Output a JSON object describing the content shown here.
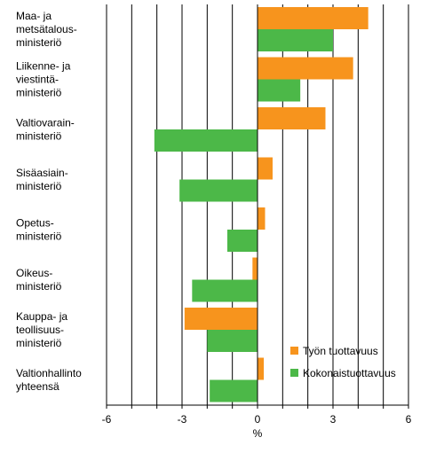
{
  "chart_data": {
    "type": "bar",
    "orientation": "horizontal",
    "categories": [
      [
        "Maa- ja",
        "metsätalous-",
        "ministeriö"
      ],
      [
        "Liikenne- ja",
        "viestintä-",
        "ministeriö"
      ],
      [
        "Valtiovarain-",
        "ministeriö"
      ],
      [
        "Sisäasiain-",
        "ministeriö"
      ],
      [
        "Opetus-",
        "ministeriö"
      ],
      [
        "Oikeus-",
        "ministeriö"
      ],
      [
        "Kauppa- ja",
        "teollisuus-",
        "ministeriö"
      ],
      [
        "Valtionhallinto",
        "yhteensä"
      ]
    ],
    "series": [
      {
        "name": "Työn tuottavuus",
        "color": "#f7941d",
        "values": [
          4.4,
          3.8,
          2.7,
          0.6,
          0.3,
          -0.2,
          -2.9,
          0.25
        ]
      },
      {
        "name": "Kokonaistuottavuus",
        "color": "#4cb848",
        "values": [
          3.0,
          1.7,
          -4.1,
          -3.1,
          -1.2,
          -2.6,
          -2.0,
          -1.9
        ]
      }
    ],
    "xlim": [
      -6,
      6
    ],
    "xticks": [
      "-6",
      "-3",
      "0",
      "3",
      "6"
    ],
    "xlabel": "%",
    "grid": "vertical",
    "legend": "bottom-right"
  }
}
